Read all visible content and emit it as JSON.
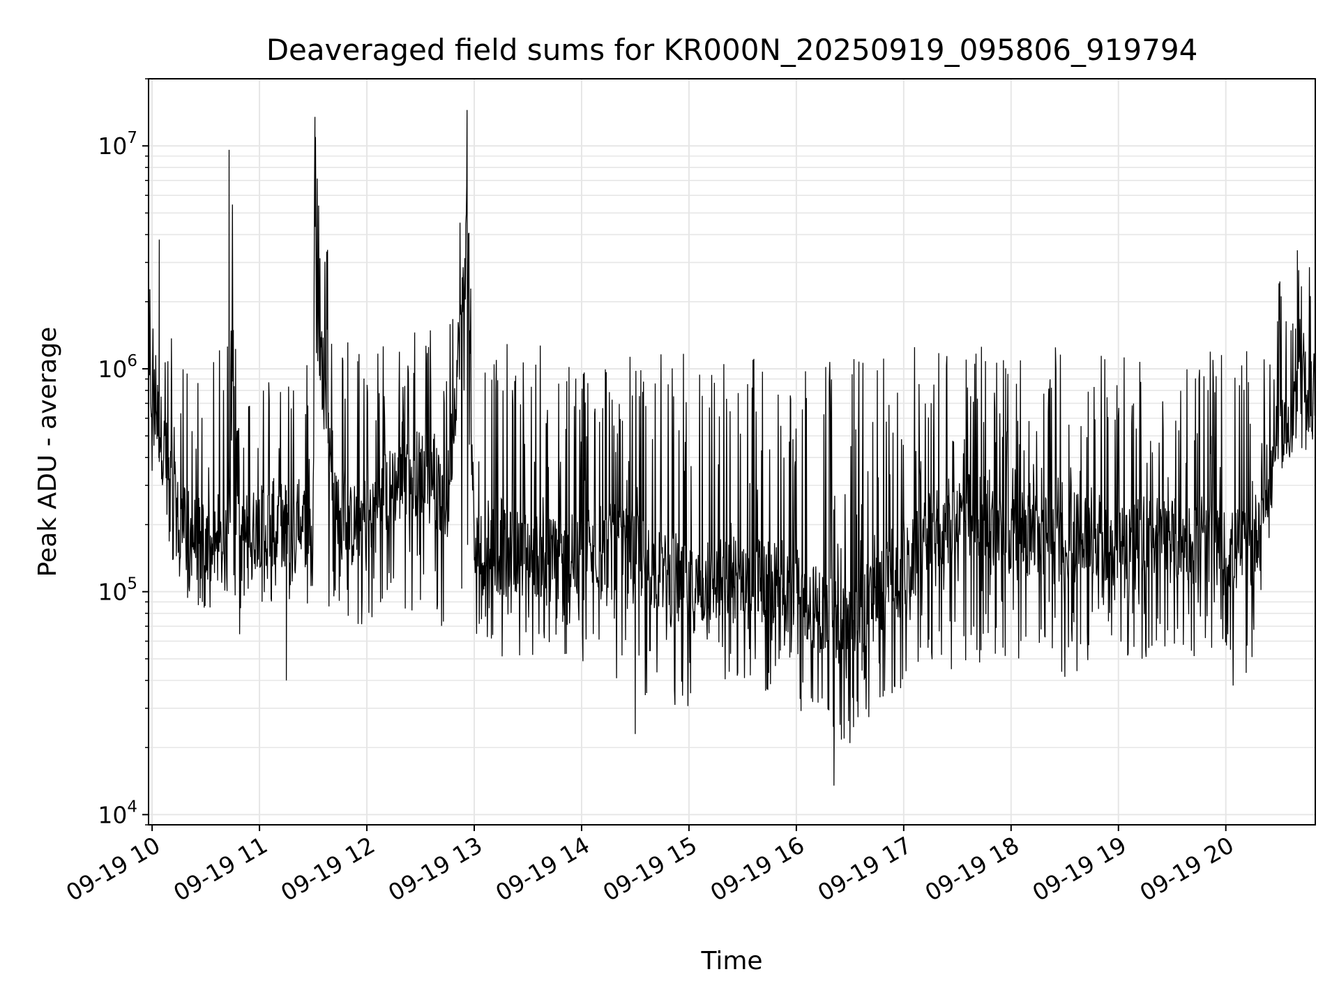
{
  "chart_data": {
    "type": "line",
    "title": "Deaveraged field sums for KR000N_20250919_095806_919794",
    "xlabel": "Time",
    "ylabel": "Peak ADU - average",
    "yscale": "log",
    "ylim": [
      9000,
      20000000
    ],
    "xlim": [
      "2025-09-19 09:58",
      "2025-09-19 20:50"
    ],
    "grid": true,
    "line_color": "#000000",
    "grid_color": "#e6e6e6",
    "x_ticks": [
      {
        "label": "09-19 10",
        "time": "2025-09-19 10:00"
      },
      {
        "label": "09-19 11",
        "time": "2025-09-19 11:00"
      },
      {
        "label": "09-19 12",
        "time": "2025-09-19 12:00"
      },
      {
        "label": "09-19 13",
        "time": "2025-09-19 13:00"
      },
      {
        "label": "09-19 14",
        "time": "2025-09-19 14:00"
      },
      {
        "label": "09-19 15",
        "time": "2025-09-19 15:00"
      },
      {
        "label": "09-19 16",
        "time": "2025-09-19 16:00"
      },
      {
        "label": "09-19 17",
        "time": "2025-09-19 17:00"
      },
      {
        "label": "09-19 18",
        "time": "2025-09-19 18:00"
      },
      {
        "label": "09-19 19",
        "time": "2025-09-19 19:00"
      },
      {
        "label": "09-19 20",
        "time": "2025-09-19 20:00"
      }
    ],
    "y_ticks": [
      {
        "base": "10",
        "exp": "4",
        "value": 10000
      },
      {
        "base": "10",
        "exp": "5",
        "value": 100000
      },
      {
        "base": "10",
        "exp": "6",
        "value": 1000000
      },
      {
        "base": "10",
        "exp": "7",
        "value": 10000000
      }
    ],
    "series": [
      {
        "x": [
          "2025-09-19 10:00",
          "2025-09-19 10:15",
          "2025-09-19 10:30",
          "2025-09-19 10:42",
          "2025-09-19 10:45",
          "2025-09-19 10:50",
          "2025-09-19 11:00",
          "2025-09-19 11:15",
          "2025-09-19 11:30",
          "2025-09-19 11:31",
          "2025-09-19 11:45",
          "2025-09-19 12:00",
          "2025-09-19 12:15",
          "2025-09-19 12:30",
          "2025-09-19 12:45",
          "2025-09-19 12:56",
          "2025-09-19 13:00",
          "2025-09-19 13:15",
          "2025-09-19 13:30",
          "2025-09-19 13:45",
          "2025-09-19 14:00",
          "2025-09-19 14:15",
          "2025-09-19 14:30",
          "2025-09-19 14:45",
          "2025-09-19 15:00",
          "2025-09-19 15:15",
          "2025-09-19 15:30",
          "2025-09-19 15:45",
          "2025-09-19 16:00",
          "2025-09-19 16:15",
          "2025-09-19 16:30",
          "2025-09-19 16:45",
          "2025-09-19 17:00",
          "2025-09-19 17:15",
          "2025-09-19 17:30",
          "2025-09-19 17:45",
          "2025-09-19 18:00",
          "2025-09-19 18:15",
          "2025-09-19 18:30",
          "2025-09-19 18:45",
          "2025-09-19 19:00",
          "2025-09-19 19:15",
          "2025-09-19 19:30",
          "2025-09-19 19:45",
          "2025-09-19 20:00",
          "2025-09-19 20:15",
          "2025-09-19 20:30",
          "2025-09-19 20:45"
        ],
        "low": [
          300000,
          100000,
          80000,
          60000,
          70000,
          60000,
          90000,
          80000,
          80000,
          80000,
          70000,
          70000,
          90000,
          70000,
          70000,
          90000,
          60000,
          50000,
          50000,
          50000,
          45000,
          40000,
          35000,
          30000,
          30000,
          30000,
          40000,
          35000,
          30000,
          25000,
          20000,
          30000,
          35000,
          50000,
          40000,
          45000,
          50000,
          50000,
          40000,
          45000,
          45000,
          50000,
          45000,
          40000,
          35000,
          40000,
          350000,
          400000
        ],
        "mid": [
          800000,
          200000,
          160000,
          150000,
          1000000,
          170000,
          200000,
          200000,
          200000,
          2000000,
          180000,
          220000,
          300000,
          350000,
          250000,
          4000000,
          150000,
          150000,
          150000,
          140000,
          130000,
          160000,
          150000,
          120000,
          100000,
          110000,
          120000,
          110000,
          100000,
          80000,
          70000,
          100000,
          120000,
          180000,
          220000,
          220000,
          180000,
          180000,
          170000,
          180000,
          170000,
          180000,
          170000,
          160000,
          150000,
          160000,
          500000,
          800000
        ],
        "high": [
          2500000,
          1200000,
          900000,
          1500000,
          9500000,
          700000,
          1000000,
          1300000,
          1400000,
          13500000,
          1600000,
          1500000,
          1300000,
          1700000,
          1400000,
          14500000,
          1500000,
          1300000,
          1300000,
          1300000,
          1200000,
          1200000,
          1200000,
          1200000,
          1200000,
          1200000,
          1300000,
          1200000,
          1200000,
          1200000,
          1200000,
          1200000,
          1300000,
          1300000,
          1300000,
          1300000,
          1300000,
          1300000,
          1300000,
          1300000,
          1300000,
          1200000,
          1200000,
          1200000,
          1200000,
          1200000,
          2500000,
          3000000
        ],
        "extremes": [
          {
            "x": "2025-09-19 10:04",
            "value": 3800000
          },
          {
            "x": "2025-09-19 10:43",
            "value": 9600000
          },
          {
            "x": "2025-09-19 11:31",
            "value": 13500000
          },
          {
            "x": "2025-09-19 11:15",
            "value": 40000
          },
          {
            "x": "2025-09-19 12:56",
            "value": 14500000
          },
          {
            "x": "2025-09-19 14:30",
            "value": 23000
          },
          {
            "x": "2025-09-19 16:21",
            "value": 13500
          },
          {
            "x": "2025-09-19 20:40",
            "value": 3400000
          }
        ]
      }
    ]
  }
}
